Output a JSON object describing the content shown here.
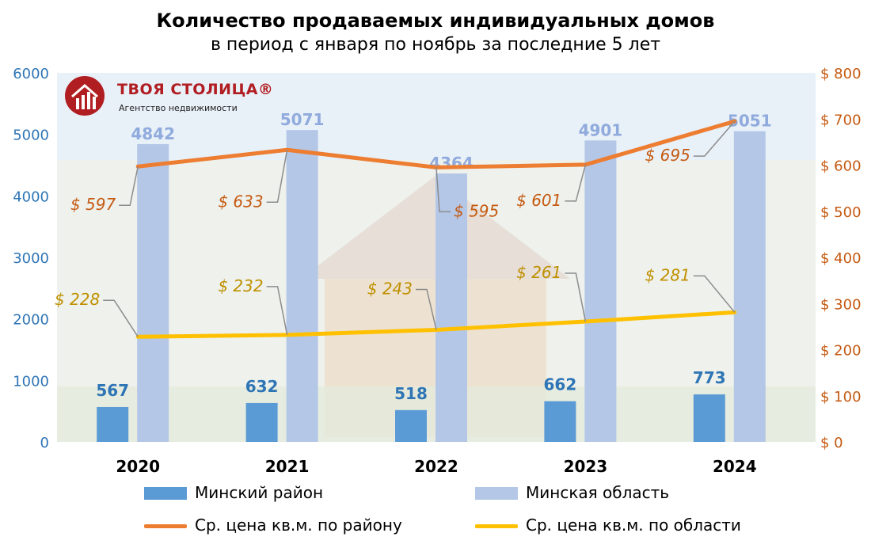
{
  "title": "Количество продаваемых индивидуальных домов",
  "subtitle": "в период с января по ноябрь за последние 5 лет",
  "logo": {
    "name": "ТВОЯ СТОЛИЦА®",
    "tagline": "Агентство недвижимости"
  },
  "colors": {
    "district_bar": "#5b9bd5",
    "region_bar": "#b4c7e7",
    "district_line": "#ed7d31",
    "region_line": "#ffc000",
    "left_axis": "#2e75b6",
    "right_axis": "#c55a11",
    "district_label": "#c55a11",
    "region_label": "#bf9000",
    "count_label_dark": "#2e75b6",
    "count_label_light": "#8faadc"
  },
  "legend": [
    {
      "label": "Минский район",
      "kind": "bar",
      "color": "#5b9bd5"
    },
    {
      "label": "Минская область",
      "kind": "bar",
      "color": "#b4c7e7"
    },
    {
      "label": "Ср. цена кв.м. по району",
      "kind": "line",
      "color": "#ed7d31"
    },
    {
      "label": "Ср. цена кв.м. по области",
      "kind": "line",
      "color": "#ffc000"
    }
  ],
  "chart_data": {
    "type": "bar",
    "categories": [
      "2020",
      "2021",
      "2022",
      "2023",
      "2024"
    ],
    "series": [
      {
        "name": "Минский район",
        "type": "bar",
        "axis": "left",
        "values": [
          567,
          632,
          518,
          662,
          773
        ]
      },
      {
        "name": "Минская область",
        "type": "bar",
        "axis": "left",
        "values": [
          4842,
          5071,
          4364,
          4901,
          5051
        ]
      },
      {
        "name": "Ср. цена кв.м. по району",
        "type": "line",
        "axis": "right",
        "values": [
          597,
          633,
          595,
          601,
          695
        ]
      },
      {
        "name": "Ср. цена кв.м. по области",
        "type": "line",
        "axis": "right",
        "values": [
          228,
          232,
          243,
          261,
          281
        ]
      }
    ],
    "y_left": {
      "min": 0,
      "max": 6000,
      "ticks": [
        "0",
        "1000",
        "2000",
        "3000",
        "4000",
        "5000",
        "6000"
      ]
    },
    "y_right": {
      "min": 0,
      "max": 800,
      "ticks": [
        "$ 0",
        "$ 100",
        "$ 200",
        "$ 300",
        "$ 400",
        "$ 500",
        "$ 600",
        "$ 700",
        "$ 800"
      ]
    },
    "price_labels_district": [
      "$ 597",
      "$ 633",
      "$ 595",
      "$ 601",
      "$ 695"
    ],
    "price_labels_region": [
      "$ 228",
      "$ 232",
      "$ 243",
      "$ 261",
      "$ 281"
    ],
    "grid": false,
    "legend_position": "bottom"
  }
}
